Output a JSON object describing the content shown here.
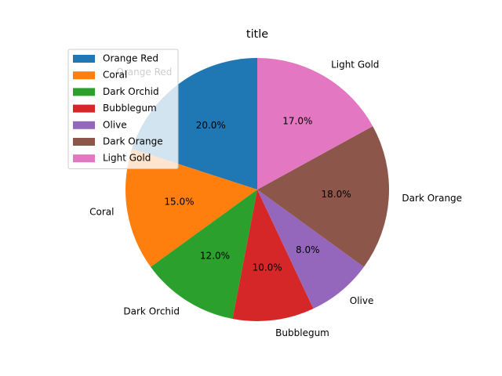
{
  "chart_data": {
    "type": "pie",
    "title": "title",
    "labels": [
      "Orange Red",
      "Coral",
      "Dark Orchid",
      "Bubblegum",
      "Olive",
      "Dark Orange",
      "Light Gold"
    ],
    "values": [
      20.0,
      15.0,
      12.0,
      10.0,
      8.0,
      18.0,
      17.0
    ],
    "percent_labels": [
      "20.0%",
      "15.0%",
      "12.0%",
      "10.0%",
      "8.0%",
      "18.0%",
      "17.0%"
    ],
    "colors": [
      "#1f77b4",
      "#ff7f0e",
      "#2ca02c",
      "#d62728",
      "#9467bd",
      "#8c564b",
      "#e377c2"
    ],
    "start_angle_deg": 90,
    "direction": "counterclockwise",
    "legend": {
      "placement": "upper-left",
      "entries": [
        "Orange Red",
        "Coral",
        "Dark Orchid",
        "Bubblegum",
        "Olive",
        "Dark Orange",
        "Light Gold"
      ]
    }
  }
}
